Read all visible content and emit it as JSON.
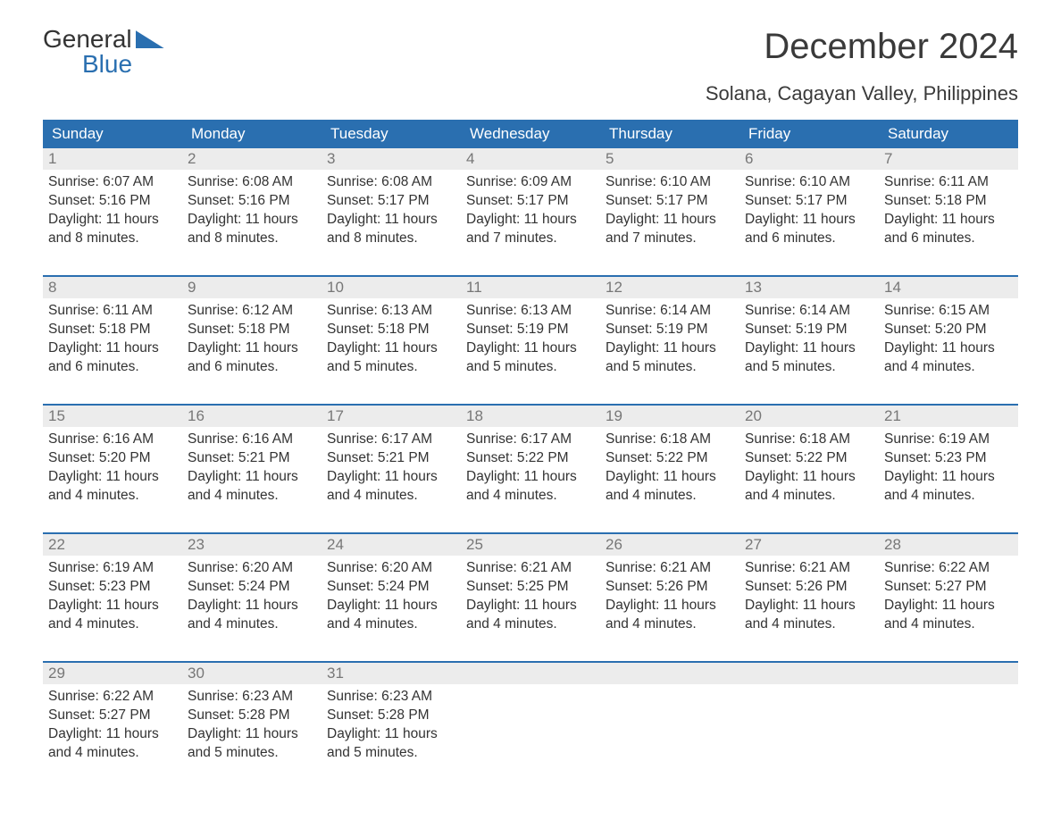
{
  "logo": {
    "line1": "General",
    "line2": "Blue"
  },
  "title": "December 2024",
  "subtitle": "Solana, Cagayan Valley, Philippines",
  "colors": {
    "header_bg": "#2a6fb0",
    "header_text": "#ffffff",
    "daynum_bg": "#ececec",
    "daynum_text": "#777777",
    "body_text": "#333333",
    "page_bg": "#ffffff",
    "week_divider": "#2a6fb0"
  },
  "typography": {
    "title_fontsize": 40,
    "subtitle_fontsize": 22,
    "dayhead_fontsize": 17,
    "daynum_fontsize": 17,
    "cell_fontsize": 15.5
  },
  "dayheads": [
    "Sunday",
    "Monday",
    "Tuesday",
    "Wednesday",
    "Thursday",
    "Friday",
    "Saturday"
  ],
  "weeks": [
    [
      {
        "n": "1",
        "sunrise": "Sunrise: 6:07 AM",
        "sunset": "Sunset: 5:16 PM",
        "d1": "Daylight: 11 hours",
        "d2": "and 8 minutes."
      },
      {
        "n": "2",
        "sunrise": "Sunrise: 6:08 AM",
        "sunset": "Sunset: 5:16 PM",
        "d1": "Daylight: 11 hours",
        "d2": "and 8 minutes."
      },
      {
        "n": "3",
        "sunrise": "Sunrise: 6:08 AM",
        "sunset": "Sunset: 5:17 PM",
        "d1": "Daylight: 11 hours",
        "d2": "and 8 minutes."
      },
      {
        "n": "4",
        "sunrise": "Sunrise: 6:09 AM",
        "sunset": "Sunset: 5:17 PM",
        "d1": "Daylight: 11 hours",
        "d2": "and 7 minutes."
      },
      {
        "n": "5",
        "sunrise": "Sunrise: 6:10 AM",
        "sunset": "Sunset: 5:17 PM",
        "d1": "Daylight: 11 hours",
        "d2": "and 7 minutes."
      },
      {
        "n": "6",
        "sunrise": "Sunrise: 6:10 AM",
        "sunset": "Sunset: 5:17 PM",
        "d1": "Daylight: 11 hours",
        "d2": "and 6 minutes."
      },
      {
        "n": "7",
        "sunrise": "Sunrise: 6:11 AM",
        "sunset": "Sunset: 5:18 PM",
        "d1": "Daylight: 11 hours",
        "d2": "and 6 minutes."
      }
    ],
    [
      {
        "n": "8",
        "sunrise": "Sunrise: 6:11 AM",
        "sunset": "Sunset: 5:18 PM",
        "d1": "Daylight: 11 hours",
        "d2": "and 6 minutes."
      },
      {
        "n": "9",
        "sunrise": "Sunrise: 6:12 AM",
        "sunset": "Sunset: 5:18 PM",
        "d1": "Daylight: 11 hours",
        "d2": "and 6 minutes."
      },
      {
        "n": "10",
        "sunrise": "Sunrise: 6:13 AM",
        "sunset": "Sunset: 5:18 PM",
        "d1": "Daylight: 11 hours",
        "d2": "and 5 minutes."
      },
      {
        "n": "11",
        "sunrise": "Sunrise: 6:13 AM",
        "sunset": "Sunset: 5:19 PM",
        "d1": "Daylight: 11 hours",
        "d2": "and 5 minutes."
      },
      {
        "n": "12",
        "sunrise": "Sunrise: 6:14 AM",
        "sunset": "Sunset: 5:19 PM",
        "d1": "Daylight: 11 hours",
        "d2": "and 5 minutes."
      },
      {
        "n": "13",
        "sunrise": "Sunrise: 6:14 AM",
        "sunset": "Sunset: 5:19 PM",
        "d1": "Daylight: 11 hours",
        "d2": "and 5 minutes."
      },
      {
        "n": "14",
        "sunrise": "Sunrise: 6:15 AM",
        "sunset": "Sunset: 5:20 PM",
        "d1": "Daylight: 11 hours",
        "d2": "and 4 minutes."
      }
    ],
    [
      {
        "n": "15",
        "sunrise": "Sunrise: 6:16 AM",
        "sunset": "Sunset: 5:20 PM",
        "d1": "Daylight: 11 hours",
        "d2": "and 4 minutes."
      },
      {
        "n": "16",
        "sunrise": "Sunrise: 6:16 AM",
        "sunset": "Sunset: 5:21 PM",
        "d1": "Daylight: 11 hours",
        "d2": "and 4 minutes."
      },
      {
        "n": "17",
        "sunrise": "Sunrise: 6:17 AM",
        "sunset": "Sunset: 5:21 PM",
        "d1": "Daylight: 11 hours",
        "d2": "and 4 minutes."
      },
      {
        "n": "18",
        "sunrise": "Sunrise: 6:17 AM",
        "sunset": "Sunset: 5:22 PM",
        "d1": "Daylight: 11 hours",
        "d2": "and 4 minutes."
      },
      {
        "n": "19",
        "sunrise": "Sunrise: 6:18 AM",
        "sunset": "Sunset: 5:22 PM",
        "d1": "Daylight: 11 hours",
        "d2": "and 4 minutes."
      },
      {
        "n": "20",
        "sunrise": "Sunrise: 6:18 AM",
        "sunset": "Sunset: 5:22 PM",
        "d1": "Daylight: 11 hours",
        "d2": "and 4 minutes."
      },
      {
        "n": "21",
        "sunrise": "Sunrise: 6:19 AM",
        "sunset": "Sunset: 5:23 PM",
        "d1": "Daylight: 11 hours",
        "d2": "and 4 minutes."
      }
    ],
    [
      {
        "n": "22",
        "sunrise": "Sunrise: 6:19 AM",
        "sunset": "Sunset: 5:23 PM",
        "d1": "Daylight: 11 hours",
        "d2": "and 4 minutes."
      },
      {
        "n": "23",
        "sunrise": "Sunrise: 6:20 AM",
        "sunset": "Sunset: 5:24 PM",
        "d1": "Daylight: 11 hours",
        "d2": "and 4 minutes."
      },
      {
        "n": "24",
        "sunrise": "Sunrise: 6:20 AM",
        "sunset": "Sunset: 5:24 PM",
        "d1": "Daylight: 11 hours",
        "d2": "and 4 minutes."
      },
      {
        "n": "25",
        "sunrise": "Sunrise: 6:21 AM",
        "sunset": "Sunset: 5:25 PM",
        "d1": "Daylight: 11 hours",
        "d2": "and 4 minutes."
      },
      {
        "n": "26",
        "sunrise": "Sunrise: 6:21 AM",
        "sunset": "Sunset: 5:26 PM",
        "d1": "Daylight: 11 hours",
        "d2": "and 4 minutes."
      },
      {
        "n": "27",
        "sunrise": "Sunrise: 6:21 AM",
        "sunset": "Sunset: 5:26 PM",
        "d1": "Daylight: 11 hours",
        "d2": "and 4 minutes."
      },
      {
        "n": "28",
        "sunrise": "Sunrise: 6:22 AM",
        "sunset": "Sunset: 5:27 PM",
        "d1": "Daylight: 11 hours",
        "d2": "and 4 minutes."
      }
    ],
    [
      {
        "n": "29",
        "sunrise": "Sunrise: 6:22 AM",
        "sunset": "Sunset: 5:27 PM",
        "d1": "Daylight: 11 hours",
        "d2": "and 4 minutes."
      },
      {
        "n": "30",
        "sunrise": "Sunrise: 6:23 AM",
        "sunset": "Sunset: 5:28 PM",
        "d1": "Daylight: 11 hours",
        "d2": "and 5 minutes."
      },
      {
        "n": "31",
        "sunrise": "Sunrise: 6:23 AM",
        "sunset": "Sunset: 5:28 PM",
        "d1": "Daylight: 11 hours",
        "d2": "and 5 minutes."
      },
      null,
      null,
      null,
      null
    ]
  ]
}
